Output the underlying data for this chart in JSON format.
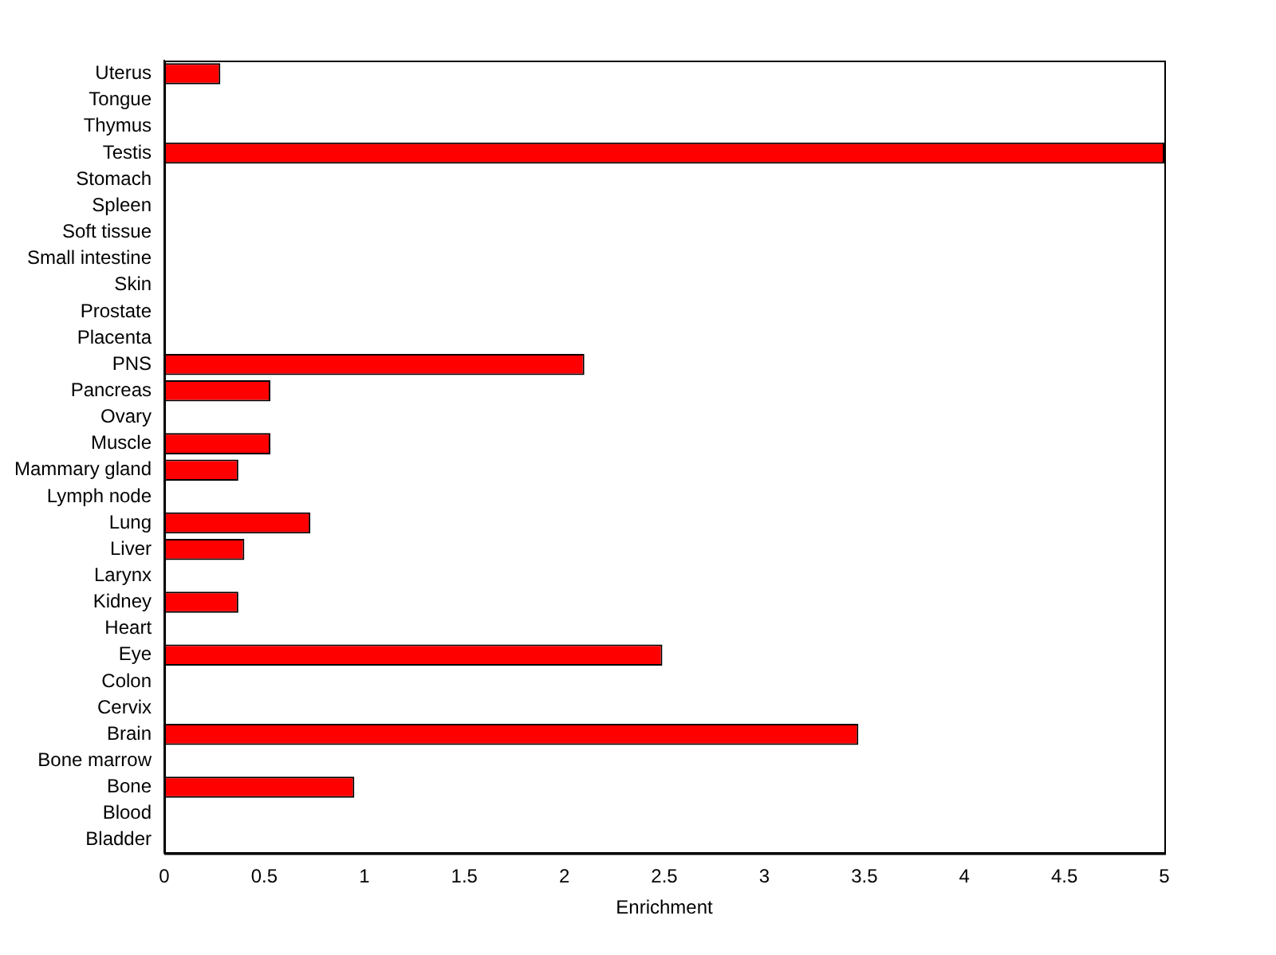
{
  "chart_data": {
    "type": "bar",
    "orientation": "horizontal",
    "xlabel": "Enrichment",
    "categories": [
      "Uterus",
      "Tongue",
      "Thymus",
      "Testis",
      "Stomach",
      "Spleen",
      "Soft tissue",
      "Small intestine",
      "Skin",
      "Prostate",
      "Placenta",
      "PNS",
      "Pancreas",
      "Ovary",
      "Muscle",
      "Mammary gland",
      "Lymph node",
      "Lung",
      "Liver",
      "Larynx",
      "Kidney",
      "Heart",
      "Eye",
      "Colon",
      "Cervix",
      "Brain",
      "Bone marrow",
      "Bone",
      "Blood",
      "Bladder"
    ],
    "values": [
      0.28,
      0,
      0,
      5,
      0,
      0,
      0,
      0,
      0,
      0,
      0,
      2.1,
      0.53,
      0,
      0.53,
      0.37,
      0,
      0.73,
      0.4,
      0,
      0.37,
      0,
      2.49,
      0,
      0,
      3.47,
      0,
      0.95,
      0,
      0
    ],
    "color": "#ff0000",
    "xlim": [
      0,
      5
    ],
    "xticks": [
      0,
      0.5,
      1,
      1.5,
      2,
      2.5,
      3,
      3.5,
      4,
      4.5,
      5
    ],
    "grid": false,
    "legend": false
  }
}
